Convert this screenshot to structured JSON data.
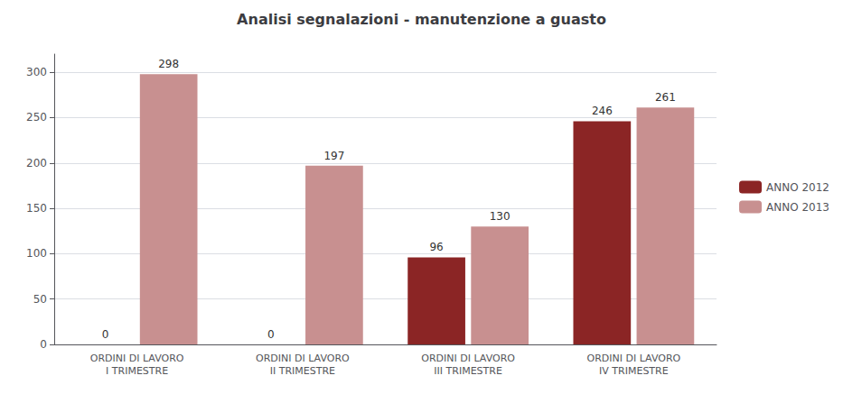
{
  "chart_data": {
    "type": "bar",
    "title": "Analisi segnalazioni - manutenzione a guasto",
    "categories": [
      "ORDINI DI LAVORO\nI TRIMESTRE",
      "ORDINI DI LAVORO\nII TRIMESTRE",
      "ORDINI DI LAVORO\nIII TRIMESTRE",
      "ORDINI DI LAVORO\nIV TRIMESTRE"
    ],
    "series": [
      {
        "name": "ANNO 2012",
        "color": "#8B2525",
        "values": [
          0,
          0,
          96,
          246
        ]
      },
      {
        "name": "ANNO 2013",
        "color": "#C89090",
        "values": [
          298,
          197,
          130,
          261
        ]
      }
    ],
    "ylim": [
      0,
      320
    ],
    "yticks": [
      0,
      50,
      100,
      150,
      200,
      250,
      300
    ],
    "grid": true,
    "legend": "right",
    "data_labels": true
  }
}
